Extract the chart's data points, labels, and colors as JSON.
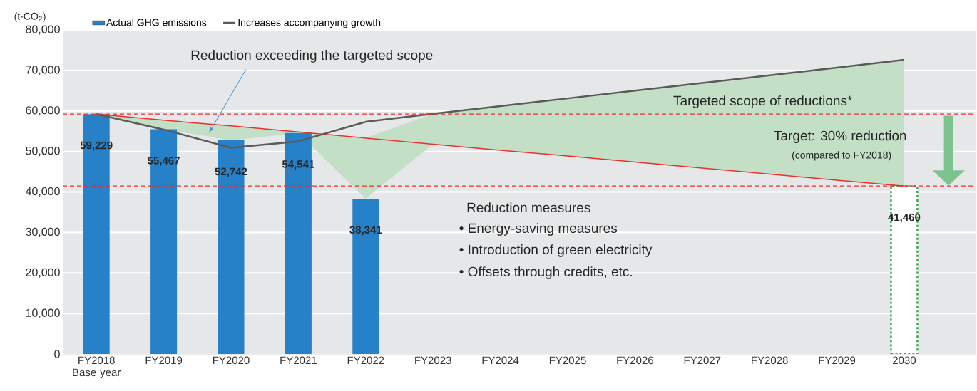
{
  "chart_data": {
    "type": "bar",
    "ylabel": "(t-CO$_{2}$)",
    "categories": [
      "FY2018 Base year",
      "FY2019",
      "FY2020",
      "FY2021",
      "FY2022",
      "FY2023",
      "FY2024",
      "FY2025",
      "FY2026",
      "FY2027",
      "FY2028",
      "FY2029",
      "2030"
    ],
    "series": [
      {
        "name": "Actual GHG emissions",
        "color": "#2681c8",
        "values": [
          59229,
          55467,
          52742,
          54541,
          38341,
          null,
          null,
          null,
          null,
          null,
          null,
          null,
          null
        ],
        "value_labels": [
          "59,229",
          "55,467",
          "52,742",
          "54,541",
          "38,341",
          null,
          null,
          null,
          null,
          null,
          null,
          null,
          null
        ]
      },
      {
        "color": "#3aa655",
        "line_style": "dashed",
        "values": [
          null,
          null,
          null,
          null,
          null,
          null,
          null,
          null,
          null,
          null,
          null,
          null,
          41460
        ],
        "value_labels": [
          null,
          null,
          null,
          null,
          null,
          null,
          null,
          null,
          null,
          null,
          null,
          null,
          "41,460"
        ]
      },
      {
        "type": "line",
        "color": "#e8312f",
        "values": [
          59229,
          57700,
          56300,
          54800,
          53300,
          51800,
          50300,
          48900,
          47400,
          45900,
          44400,
          42900,
          41460
        ],
        "lower": [
          59229,
          55467,
          52742,
          54541,
          38341,
          51800,
          50300,
          48900,
          47400,
          45900,
          44400,
          42900,
          41460
        ],
        "upper": [
          59229,
          57700,
          56300,
          54800,
          53300,
          59300,
          61200,
          63100,
          65000,
          66900,
          68800,
          70700,
          72600
        ]
      },
      {
        "name": "Increases accompanying growth",
        "type": "line",
        "color": "#5a5a5a",
        "values": [
          59200,
          55400,
          50900,
          52500,
          57300,
          59300,
          61200,
          63100,
          65000,
          66900,
          68800,
          70700,
          72600
        ]
      }
    ],
    "ylim": [
      0,
      80000
    ],
    "yticks": [
      0,
      {
        "value": 10000,
        "label": "10,000"
      },
      {
        "value": 20000,
        "label": "20,000"
      },
      {
        "value": 30000,
        "label": "30,000"
      },
      {
        "value": 40000,
        "label": "40,000"
      },
      {
        "value": 50000,
        "label": "50,000"
      },
      {
        "value": 60000,
        "label": "60,000"
      },
      {
        "value": 70000,
        "label": "70,000"
      },
      {
        "value": 80000,
        "label": "80,000"
      }
    ],
    "ref_lines": [
      {
        "axis": "y",
        "value": 59229,
        "color": "#e8312f",
        "line_style": "dashed"
      },
      {
        "axis": "y",
        "value": 41460,
        "color": "#e8312f",
        "line_style": "dashed"
      }
    ],
    "annotations": [
      "Reduction exceeding the targeted scope",
      "Targeted scope of reductions*",
      "Target: 30% reduction",
      "(compared to FY2018)",
      "Reduction measures",
      "• Energy-saving measures",
      "• Introduction of green electricity",
      "• Offsets through credits, etc."
    ],
    "grid": "y",
    "legend": "top left"
  }
}
